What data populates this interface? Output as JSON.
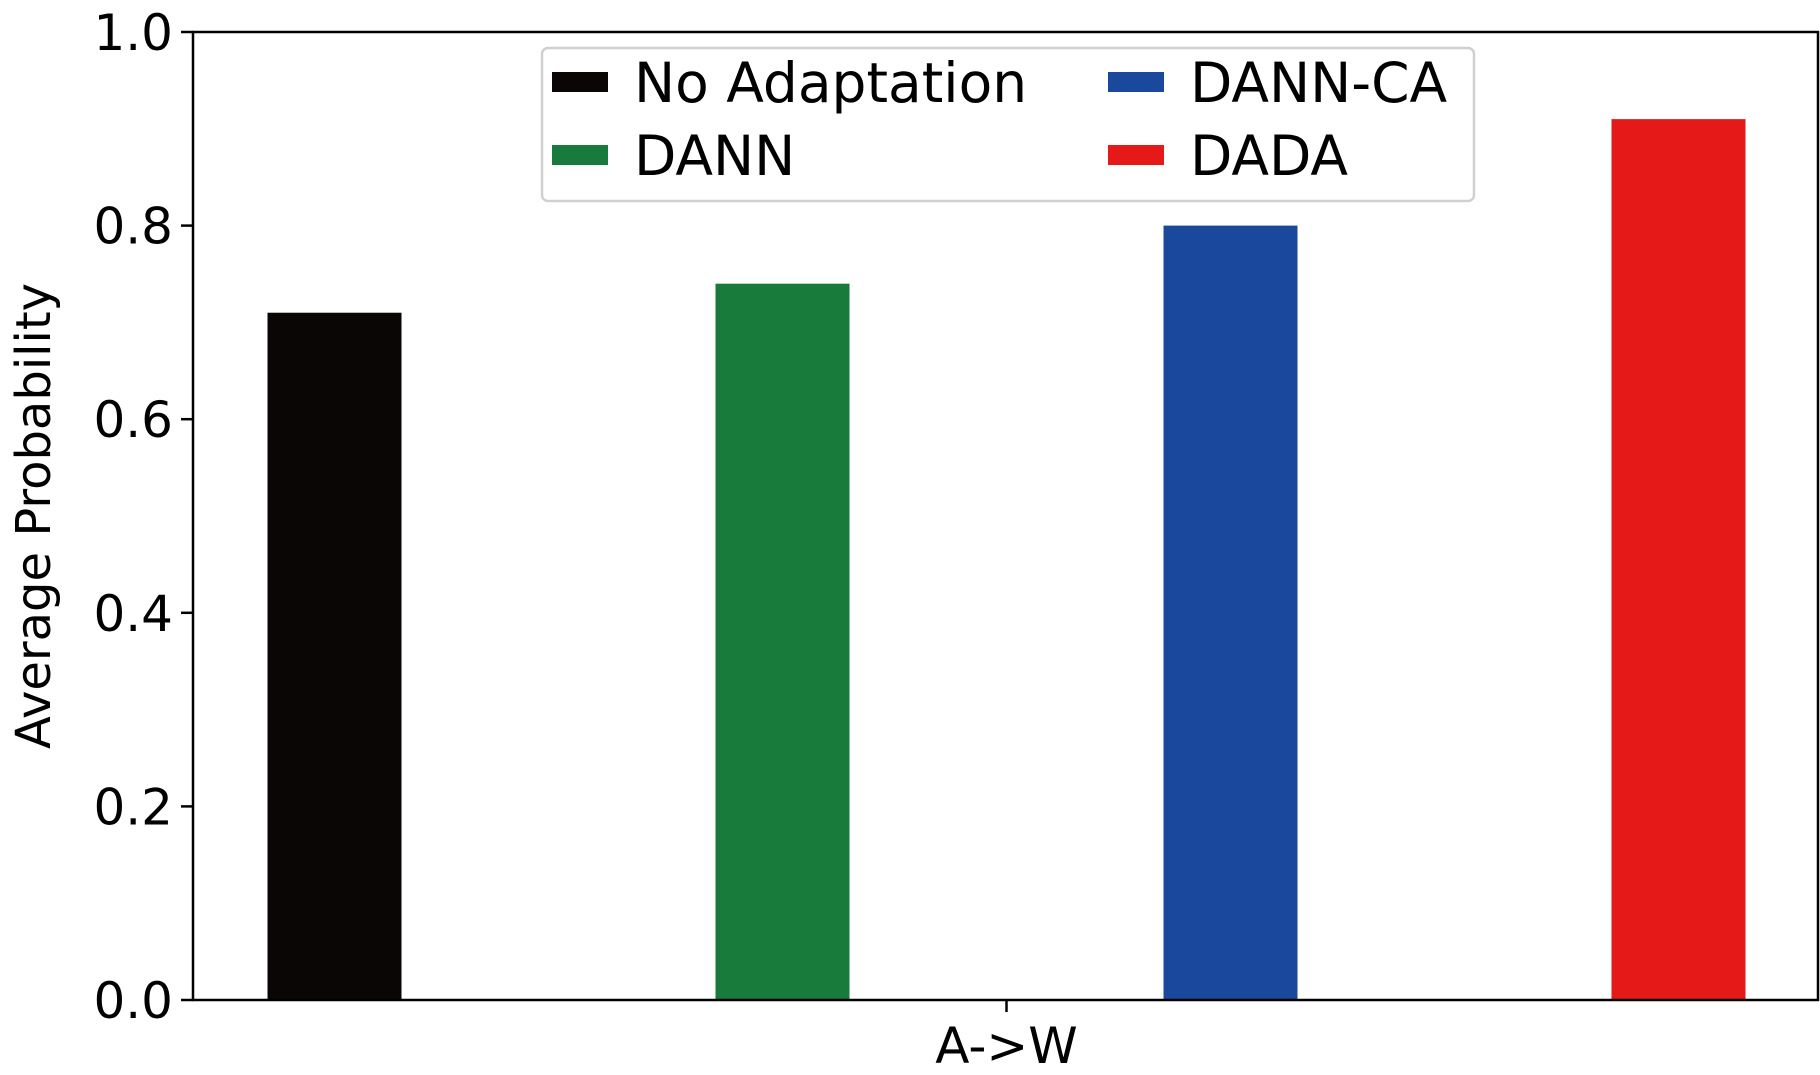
{
  "chart_data": {
    "type": "bar",
    "title": "",
    "xlabel": "",
    "ylabel": "Average Probability",
    "categories": [
      "A->W"
    ],
    "series": [
      {
        "name": "No Adaptation",
        "values": [
          0.71
        ],
        "color": "#0a0606"
      },
      {
        "name": "DANN",
        "values": [
          0.74
        ],
        "color": "#187a3b"
      },
      {
        "name": "DANN-CA",
        "values": [
          0.8
        ],
        "color": "#1a489c"
      },
      {
        "name": "DADA",
        "values": [
          0.91
        ],
        "color": "#e61919"
      }
    ],
    "ylim": [
      0,
      1.0
    ],
    "yticks": [
      "0.0",
      "0.2",
      "0.4",
      "0.6",
      "0.8",
      "1.0"
    ],
    "grid": false,
    "legend": {
      "placement": "top-center",
      "columns": 2
    }
  }
}
